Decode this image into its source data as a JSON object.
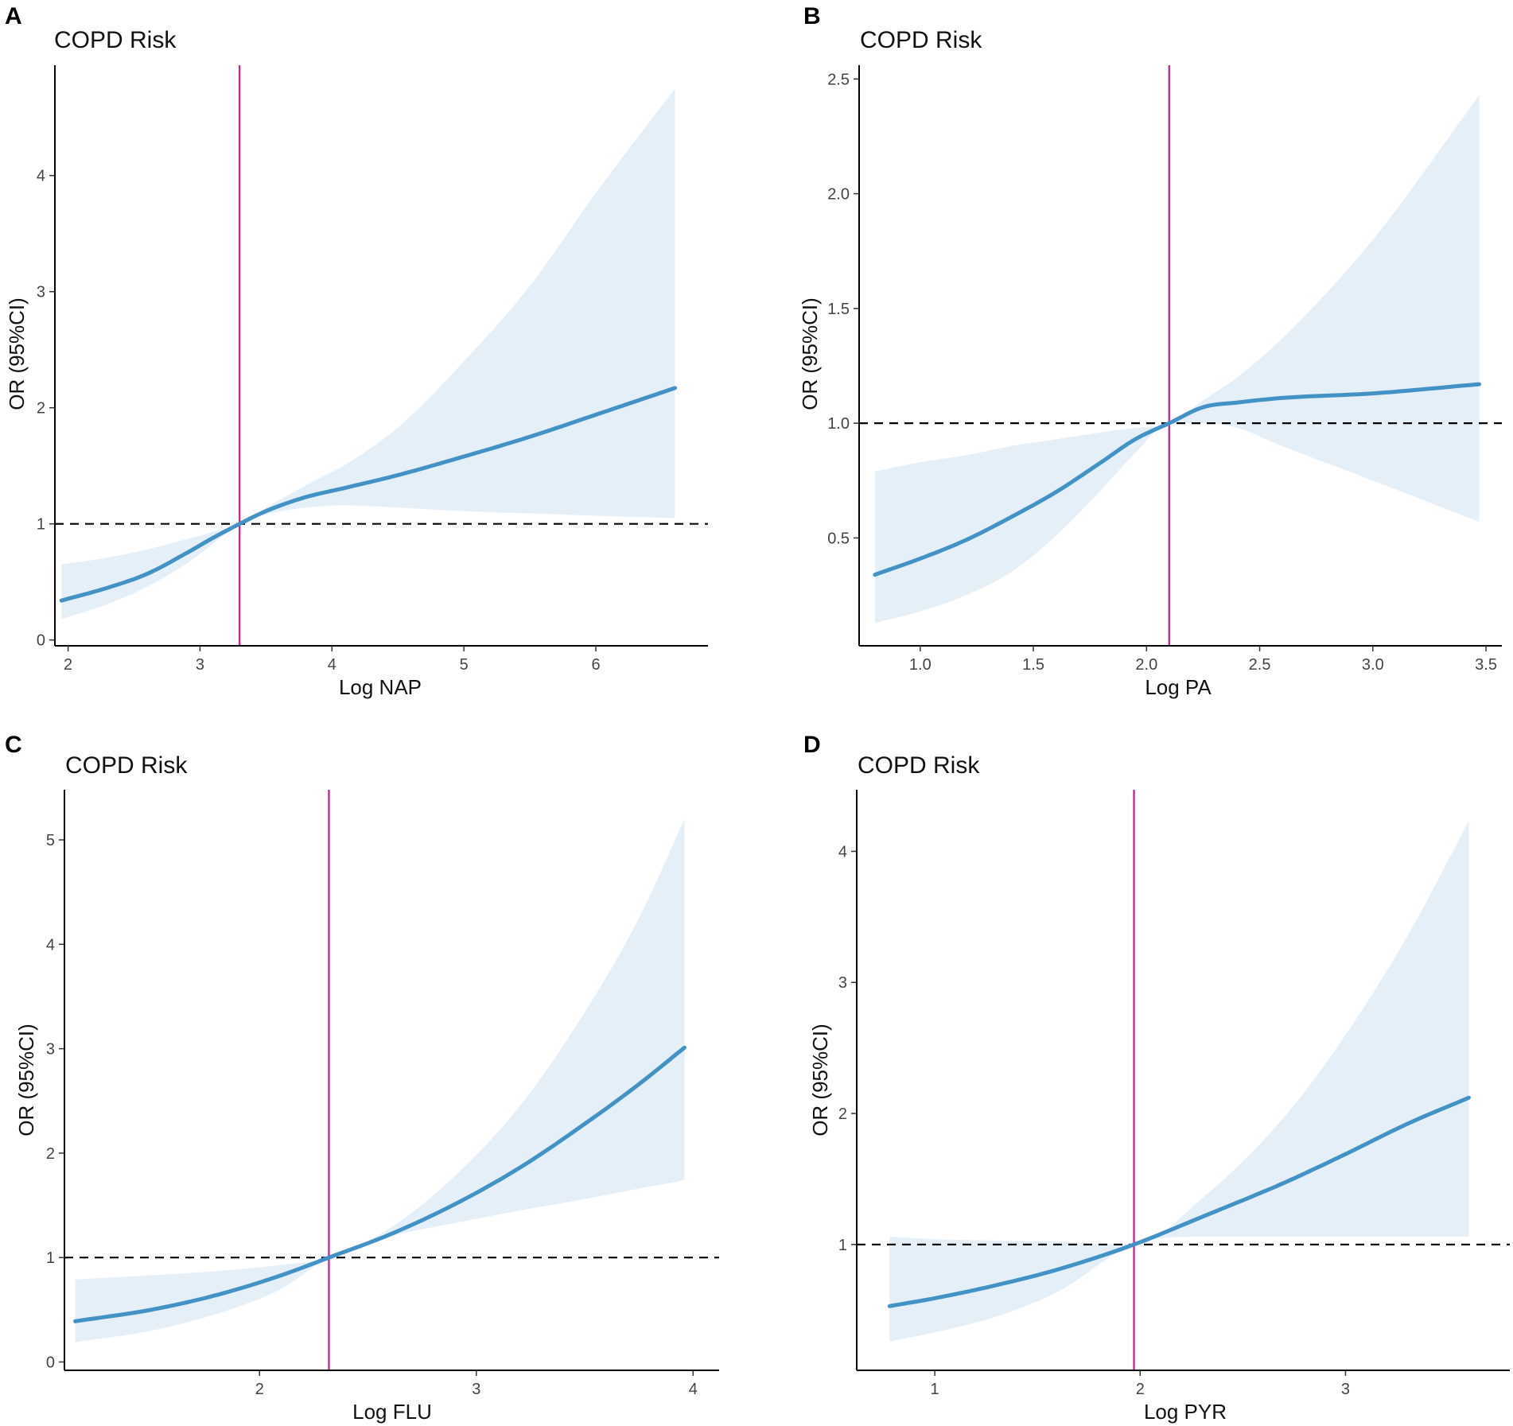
{
  "colors": {
    "curve": "#4292c6",
    "band": "#e5eff8",
    "vline": "#c51b8a",
    "reference": "#000000",
    "axis": "#000000"
  },
  "chart_data": [
    {
      "type": "line",
      "panel": "A",
      "title": "COPD Risk",
      "xlabel": "Log NAP",
      "ylabel": "OR (95%CI)",
      "xlim": [
        1.9,
        6.85
      ],
      "ylim": [
        -0.05,
        4.95
      ],
      "xticks": [
        2,
        3,
        4,
        5,
        6
      ],
      "yticks": [
        0,
        1,
        2,
        3,
        4
      ],
      "xtick_labels": [
        "2",
        "3",
        "4",
        "5",
        "6"
      ],
      "ytick_labels": [
        "0",
        "1",
        "2",
        "3",
        "4"
      ],
      "reference_y": 1,
      "vline_x": 3.3,
      "series": [
        {
          "name": "OR",
          "x": [
            1.95,
            2.3,
            2.6,
            2.9,
            3.1,
            3.3,
            3.5,
            3.8,
            4.1,
            4.5,
            5.0,
            5.5,
            6.0,
            6.6
          ],
          "y": [
            0.34,
            0.45,
            0.57,
            0.75,
            0.88,
            1.0,
            1.11,
            1.23,
            1.31,
            1.42,
            1.58,
            1.75,
            1.94,
            2.17
          ]
        },
        {
          "name": "CI lower",
          "x": [
            1.95,
            2.3,
            2.6,
            2.9,
            3.1,
            3.3,
            3.5,
            3.8,
            4.1,
            4.5,
            5.0,
            5.5,
            6.0,
            6.6
          ],
          "y": [
            0.18,
            0.31,
            0.46,
            0.66,
            0.83,
            1.0,
            1.08,
            1.14,
            1.16,
            1.14,
            1.11,
            1.09,
            1.07,
            1.05
          ]
        },
        {
          "name": "CI upper",
          "x": [
            1.95,
            2.3,
            2.6,
            2.9,
            3.1,
            3.3,
            3.5,
            3.8,
            4.1,
            4.5,
            5.0,
            5.5,
            6.0,
            6.6
          ],
          "y": [
            0.65,
            0.71,
            0.78,
            0.87,
            0.93,
            1.0,
            1.14,
            1.33,
            1.51,
            1.83,
            2.4,
            3.05,
            3.85,
            4.75
          ]
        }
      ]
    },
    {
      "type": "line",
      "panel": "B",
      "title": "COPD Risk",
      "xlabel": "Log PA",
      "ylabel": "OR (95%CI)",
      "xlim": [
        0.73,
        3.57
      ],
      "ylim": [
        0.03,
        2.56
      ],
      "xticks": [
        1.0,
        1.5,
        2.0,
        2.5,
        3.0,
        3.5
      ],
      "yticks": [
        0.5,
        1.0,
        1.5,
        2.0,
        2.5
      ],
      "xtick_labels": [
        "1.0",
        "1.5",
        "2.0",
        "2.5",
        "3.0",
        "3.5"
      ],
      "ytick_labels": [
        "0.5",
        "1.0",
        "1.5",
        "2.0",
        "2.5"
      ],
      "reference_y": 1.0,
      "vline_x": 2.1,
      "series": [
        {
          "name": "OR",
          "x": [
            0.8,
            1.0,
            1.2,
            1.4,
            1.6,
            1.8,
            1.95,
            2.1,
            2.25,
            2.4,
            2.6,
            3.0,
            3.47
          ],
          "y": [
            0.34,
            0.41,
            0.49,
            0.59,
            0.7,
            0.83,
            0.93,
            1.0,
            1.07,
            1.09,
            1.11,
            1.13,
            1.17
          ]
        },
        {
          "name": "CI lower",
          "x": [
            0.8,
            1.0,
            1.2,
            1.4,
            1.6,
            1.8,
            1.95,
            2.1,
            2.25,
            2.4,
            2.6,
            3.0,
            3.47
          ],
          "y": [
            0.13,
            0.18,
            0.25,
            0.35,
            0.51,
            0.71,
            0.87,
            1.0,
            1.0,
            0.98,
            0.9,
            0.75,
            0.57
          ]
        },
        {
          "name": "CI upper",
          "x": [
            0.8,
            1.0,
            1.2,
            1.4,
            1.6,
            1.8,
            1.95,
            2.1,
            2.25,
            2.4,
            2.6,
            3.0,
            3.47
          ],
          "y": [
            0.79,
            0.83,
            0.86,
            0.9,
            0.93,
            0.96,
            0.98,
            1.0,
            1.1,
            1.2,
            1.37,
            1.8,
            2.43
          ]
        }
      ]
    },
    {
      "type": "line",
      "panel": "C",
      "title": "COPD Risk",
      "xlabel": "Log FLU",
      "ylabel": "OR (95%CI)",
      "xlim": [
        1.1,
        4.12
      ],
      "ylim": [
        -0.08,
        5.48
      ],
      "xticks": [
        2,
        3,
        4
      ],
      "yticks": [
        0,
        1,
        2,
        3,
        4,
        5
      ],
      "xtick_labels": [
        "2",
        "3",
        "4"
      ],
      "ytick_labels": [
        "0",
        "1",
        "2",
        "3",
        "4",
        "5"
      ],
      "reference_y": 1,
      "vline_x": 2.32,
      "series": [
        {
          "name": "OR",
          "x": [
            1.15,
            1.5,
            1.8,
            2.1,
            2.32,
            2.6,
            2.9,
            3.2,
            3.5,
            3.75,
            3.96
          ],
          "y": [
            0.39,
            0.5,
            0.64,
            0.83,
            1.0,
            1.22,
            1.51,
            1.86,
            2.28,
            2.66,
            3.01
          ]
        },
        {
          "name": "CI lower",
          "x": [
            1.15,
            1.5,
            1.8,
            2.1,
            2.32,
            2.6,
            2.9,
            3.2,
            3.5,
            3.75,
            3.96
          ],
          "y": [
            0.19,
            0.3,
            0.46,
            0.7,
            1.0,
            1.2,
            1.33,
            1.45,
            1.56,
            1.66,
            1.74
          ]
        },
        {
          "name": "CI upper",
          "x": [
            1.15,
            1.5,
            1.8,
            2.1,
            2.32,
            2.6,
            2.9,
            3.2,
            3.5,
            3.75,
            3.96
          ],
          "y": [
            0.79,
            0.83,
            0.87,
            0.93,
            1.0,
            1.28,
            1.78,
            2.45,
            3.35,
            4.25,
            5.2
          ]
        }
      ]
    },
    {
      "type": "line",
      "panel": "D",
      "title": "COPD Risk",
      "xlabel": "Log PYR",
      "ylabel": "OR (95%CI)",
      "xlim": [
        0.62,
        3.8
      ],
      "ylim": [
        0.04,
        4.47
      ],
      "xticks": [
        1,
        2,
        3
      ],
      "yticks": [
        1,
        2,
        3,
        4
      ],
      "xtick_labels": [
        "1",
        "2",
        "3"
      ],
      "ytick_labels": [
        "1",
        "2",
        "3",
        "4"
      ],
      "reference_y": 1,
      "vline_x": 1.97,
      "series": [
        {
          "name": "OR",
          "x": [
            0.78,
            1.0,
            1.3,
            1.6,
            1.97,
            2.3,
            2.7,
            3.0,
            3.3,
            3.6
          ],
          "y": [
            0.53,
            0.59,
            0.69,
            0.81,
            1.0,
            1.21,
            1.47,
            1.69,
            1.92,
            2.12
          ]
        },
        {
          "name": "CI lower",
          "x": [
            0.78,
            1.0,
            1.3,
            1.6,
            1.97,
            2.3,
            2.7,
            3.0,
            3.3,
            3.6
          ],
          "y": [
            0.26,
            0.33,
            0.45,
            0.64,
            1.0,
            1.06,
            1.06,
            1.06,
            1.06,
            1.06
          ]
        },
        {
          "name": "CI upper",
          "x": [
            0.78,
            1.0,
            1.3,
            1.6,
            1.97,
            2.3,
            2.7,
            3.0,
            3.3,
            3.6
          ],
          "y": [
            1.06,
            1.04,
            1.03,
            1.02,
            1.0,
            1.35,
            1.97,
            2.6,
            3.35,
            4.23
          ]
        }
      ]
    }
  ]
}
